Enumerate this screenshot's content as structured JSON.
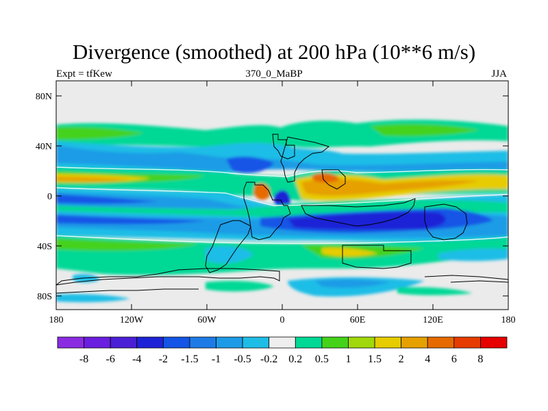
{
  "title": "Divergence (smoothed) at 200 hPa (10**6 m/s)",
  "subtitle_left": "Expt = tfKew",
  "subtitle_center": "370_0_MaBP",
  "subtitle_right": "JJA",
  "lat_labels": [
    "80N",
    "40N",
    "0",
    "40S",
    "80S"
  ],
  "lon_labels": [
    "180",
    "120W",
    "60W",
    "0",
    "60E",
    "120E",
    "180"
  ],
  "colorbar": {
    "labels": [
      "-8",
      "-6",
      "-4",
      "-2",
      "-1.5",
      "-1",
      "-0.5",
      "-0.2",
      "0.2",
      "0.5",
      "1",
      "1.5",
      "2",
      "4",
      "6",
      "8"
    ],
    "colors": [
      "#8a2be2",
      "#6a1ee0",
      "#4b1fd6",
      "#1e22d6",
      "#1454e6",
      "#1e7be6",
      "#1e9be6",
      "#1ebde6",
      "#eeeeee",
      "#00d896",
      "#44d21a",
      "#a0d80c",
      "#e6cc00",
      "#e6a000",
      "#e66a00",
      "#e63c00",
      "#e60000"
    ]
  },
  "palette": {
    "background": "#ebebeb",
    "neg_light": "#1ebde6",
    "neg_mid": "#1e9be6",
    "neg_strong": "#1454e6",
    "neg_deep": "#1e22d6",
    "pos_light": "#00d896",
    "pos_mid": "#44d21a",
    "pos_yellow": "#e6cc00",
    "pos_orange": "#e6a000",
    "pos_red": "#e66a00"
  }
}
